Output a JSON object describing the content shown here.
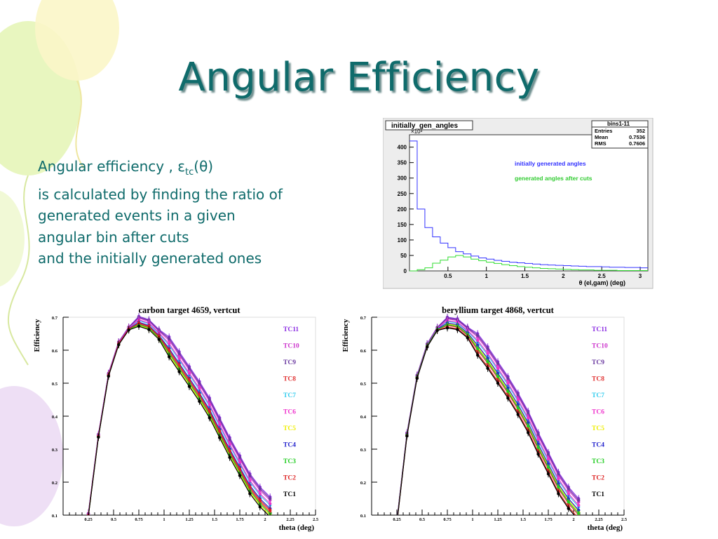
{
  "slide": {
    "title": "Angular Efficiency",
    "desc_line1_prefix": "Angular efficiency , ",
    "desc_eps": "ε",
    "desc_sub": "tc",
    "desc_theta": "(θ)",
    "desc_line2": "is calculated by finding the ratio of",
    "desc_line3": "generated events in a given",
    "desc_line4": "angular bin after cuts",
    "desc_line5": "and the initially generated ones"
  },
  "colors": {
    "title": "#0f6b6b",
    "blue_series": "#3333ff",
    "green_series": "#33dd33"
  },
  "chart_data": [
    {
      "type": "line",
      "title": "initially_gen_angles",
      "xlabel": "θ (el,gam) (deg)",
      "y_multiplier": "×10³",
      "xlim": [
        0,
        3.1
      ],
      "ylim": [
        0,
        440
      ],
      "xticks": [
        "0.5",
        "1",
        "1.5",
        "2",
        "2.5",
        "3"
      ],
      "yticks": [
        "0",
        "50",
        "100",
        "150",
        "200",
        "250",
        "300",
        "350",
        "400"
      ],
      "stats": {
        "name": "bins1-11",
        "entries": "352",
        "mean": "0.7536",
        "rms": "0.7606",
        "entries_label": "Entries",
        "mean_label": "Mean",
        "rms_label": "RMS"
      },
      "bin_width": 0.1,
      "series": [
        {
          "name": "initially generated angles",
          "color": "#3333ff",
          "x": [
            0.05,
            0.15,
            0.25,
            0.35,
            0.45,
            0.55,
            0.65,
            0.75,
            0.85,
            0.95,
            1.05,
            1.15,
            1.25,
            1.35,
            1.45,
            1.55,
            1.65,
            1.75,
            1.85,
            1.95,
            2.05,
            2.15,
            2.25,
            2.35,
            2.45,
            2.55,
            2.65,
            2.75,
            2.85,
            2.95,
            3.05
          ],
          "values": [
            420,
            200,
            140,
            110,
            90,
            75,
            62,
            55,
            48,
            42,
            38,
            34,
            31,
            28,
            26,
            24,
            22,
            20,
            19,
            18,
            17,
            16,
            15,
            14,
            14,
            13,
            12,
            12,
            11,
            11,
            10
          ]
        },
        {
          "name": "generated angles after cuts",
          "color": "#33dd33",
          "x": [
            0.05,
            0.15,
            0.25,
            0.35,
            0.45,
            0.55,
            0.65,
            0.75,
            0.85,
            0.95,
            1.05,
            1.15,
            1.25,
            1.35,
            1.45,
            1.55,
            1.65,
            1.75,
            1.85,
            1.95,
            2.05,
            2.15,
            2.25,
            2.35,
            2.45,
            2.55,
            2.65,
            2.75,
            2.85,
            2.95,
            3.05
          ],
          "values": [
            0,
            4,
            10,
            25,
            35,
            45,
            50,
            45,
            38,
            33,
            28,
            24,
            20,
            17,
            14,
            12,
            10,
            8,
            7,
            6,
            5,
            4,
            3,
            3,
            2,
            2,
            2,
            1,
            1,
            1,
            1
          ]
        }
      ]
    },
    {
      "type": "line",
      "title": "carbon target 4659, vertcut",
      "xlabel": "theta (deg)",
      "ylabel": "Efficiency",
      "xlim": [
        0,
        2.5
      ],
      "ylim": [
        0.1,
        0.7
      ],
      "xticks": [
        "0.25",
        "0.5",
        "0.75",
        "1",
        "1.25",
        "1.5",
        "1.75",
        "2",
        "2.25",
        "2.5"
      ],
      "yticks": [
        "0.1",
        "0.2",
        "0.3",
        "0.4",
        "0.5",
        "0.6",
        "0.7"
      ],
      "x": [
        0.25,
        0.35,
        0.45,
        0.55,
        0.65,
        0.75,
        0.85,
        0.95,
        1.05,
        1.15,
        1.25,
        1.35,
        1.45,
        1.55,
        1.65,
        1.75,
        1.85,
        1.95,
        2.05
      ],
      "base": [
        0.1,
        0.34,
        0.525,
        0.62,
        0.665,
        0.685,
        0.675,
        0.645,
        0.605,
        0.56,
        0.515,
        0.47,
        0.42,
        0.36,
        0.3,
        0.245,
        0.19,
        0.15,
        0.12
      ],
      "series": [
        {
          "name": "TC11",
          "color": "#8a2be2",
          "shift": 0.035
        },
        {
          "name": "TC10",
          "color": "#cc33cc",
          "shift": 0.025
        },
        {
          "name": "TC9",
          "color": "#6a3aa0",
          "shift": 0.03
        },
        {
          "name": "TC8",
          "color": "#e03030",
          "shift": -0.01
        },
        {
          "name": "TC7",
          "color": "#33ccee",
          "shift": 0.01
        },
        {
          "name": "TC6",
          "color": "#ee33cc",
          "shift": 0.015
        },
        {
          "name": "TC5",
          "color": "#eeee00",
          "shift": -0.02
        },
        {
          "name": "TC4",
          "color": "#2222cc",
          "shift": 0.0
        },
        {
          "name": "TC3",
          "color": "#22cc22",
          "shift": -0.015
        },
        {
          "name": "TC2",
          "color": "#dd2222",
          "shift": -0.005
        },
        {
          "name": "TC1",
          "color": "#000000",
          "shift": -0.025
        }
      ]
    },
    {
      "type": "line",
      "title": "beryllium target 4868, vertcut",
      "xlabel": "theta (deg)",
      "ylabel": "Efficiency",
      "xlim": [
        0,
        2.5
      ],
      "ylim": [
        0.1,
        0.7
      ],
      "xticks": [
        "0.25",
        "0.5",
        "0.75",
        "1",
        "1.25",
        "1.5",
        "1.75",
        "2",
        "2.25",
        "2.5"
      ],
      "yticks": [
        "0.1",
        "0.2",
        "0.3",
        "0.4",
        "0.5",
        "0.6",
        "0.7"
      ],
      "x": [
        0.25,
        0.35,
        0.45,
        0.55,
        0.65,
        0.75,
        0.85,
        0.95,
        1.05,
        1.15,
        1.25,
        1.35,
        1.45,
        1.55,
        1.65,
        1.75,
        1.85,
        1.95,
        2.05
      ],
      "base": [
        0.08,
        0.345,
        0.52,
        0.615,
        0.665,
        0.685,
        0.68,
        0.655,
        0.62,
        0.58,
        0.535,
        0.49,
        0.44,
        0.385,
        0.32,
        0.26,
        0.2,
        0.155,
        0.12
      ],
      "series": [
        {
          "name": "TC11",
          "color": "#8a2be2",
          "shift": 0.03
        },
        {
          "name": "TC10",
          "color": "#cc33cc",
          "shift": 0.02
        },
        {
          "name": "TC9",
          "color": "#6a3aa0",
          "shift": 0.025
        },
        {
          "name": "TC8",
          "color": "#e03030",
          "shift": -0.02
        },
        {
          "name": "TC7",
          "color": "#33ccee",
          "shift": 0.005
        },
        {
          "name": "TC6",
          "color": "#ee33cc",
          "shift": 0.01
        },
        {
          "name": "TC5",
          "color": "#eeee00",
          "shift": -0.01
        },
        {
          "name": "TC4",
          "color": "#2222cc",
          "shift": -0.005
        },
        {
          "name": "TC3",
          "color": "#22cc22",
          "shift": -0.015
        },
        {
          "name": "TC2",
          "color": "#dd2222",
          "shift": -0.03
        },
        {
          "name": "TC1",
          "color": "#000000",
          "shift": -0.035
        }
      ]
    }
  ]
}
